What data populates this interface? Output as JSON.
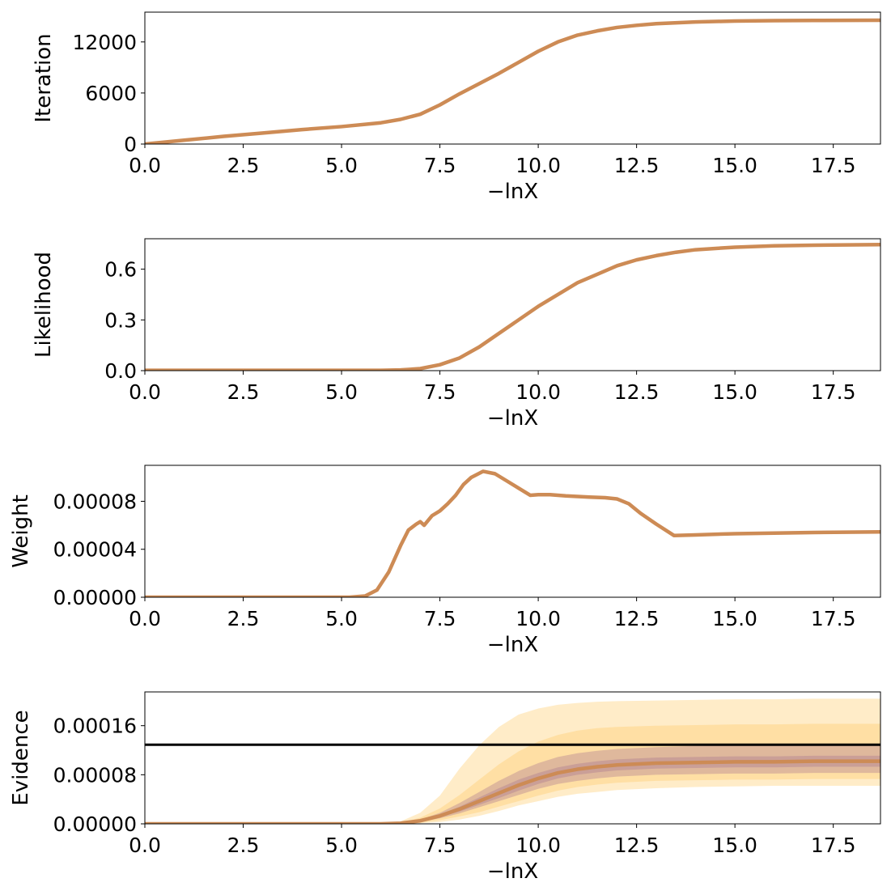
{
  "colors": {
    "line": "#cd8b55",
    "band_outer": "#ffc862",
    "band_inner": "#a27090",
    "reference": "#000000"
  },
  "chart_data": [
    {
      "type": "line",
      "xlabel": "−lnX",
      "ylabel": "Iteration",
      "xlim": [
        0,
        18.7
      ],
      "ylim": [
        0,
        15500
      ],
      "x_ticks": [
        "0.0",
        "2.5",
        "5.0",
        "7.5",
        "10.0",
        "12.5",
        "15.0",
        "17.5"
      ],
      "y_ticks": [
        "0",
        "6000",
        "12000"
      ],
      "series": [
        {
          "x": [
            0,
            1,
            2,
            3,
            4,
            5,
            6,
            6.5,
            7,
            7.5,
            8,
            8.5,
            9,
            9.5,
            10,
            10.5,
            11,
            11.5,
            12,
            12.5,
            13,
            14,
            15,
            16,
            17,
            18.7
          ],
          "values": [
            0,
            450,
            900,
            1300,
            1700,
            2050,
            2500,
            2900,
            3500,
            4600,
            5900,
            7100,
            8300,
            9600,
            10900,
            12000,
            12800,
            13300,
            13700,
            13950,
            14150,
            14350,
            14450,
            14500,
            14520,
            14550
          ]
        }
      ]
    },
    {
      "type": "line",
      "xlabel": "−lnX",
      "ylabel": "Likelihood",
      "xlim": [
        0,
        18.7
      ],
      "ylim": [
        0,
        0.78
      ],
      "x_ticks": [
        "0.0",
        "2.5",
        "5.0",
        "7.5",
        "10.0",
        "12.5",
        "15.0",
        "17.5"
      ],
      "y_ticks": [
        "0.0",
        "0.3",
        "0.6"
      ],
      "series": [
        {
          "x": [
            0,
            2,
            4,
            6,
            6.5,
            7,
            7.5,
            8,
            8.5,
            9,
            9.5,
            10,
            10.5,
            11,
            11.5,
            12,
            12.5,
            13,
            13.5,
            14,
            15,
            16,
            17,
            18.7
          ],
          "values": [
            0.002,
            0.002,
            0.002,
            0.002,
            0.004,
            0.012,
            0.035,
            0.075,
            0.14,
            0.22,
            0.3,
            0.38,
            0.45,
            0.52,
            0.57,
            0.62,
            0.655,
            0.68,
            0.7,
            0.715,
            0.73,
            0.738,
            0.742,
            0.745
          ]
        }
      ]
    },
    {
      "type": "line",
      "xlabel": "−lnX",
      "ylabel": "Weight",
      "xlim": [
        0,
        18.7
      ],
      "ylim": [
        0,
        0.00011
      ],
      "x_ticks": [
        "0.0",
        "2.5",
        "5.0",
        "7.5",
        "10.0",
        "12.5",
        "15.0",
        "17.5"
      ],
      "y_ticks": [
        "0.00000",
        "0.00004",
        "0.00008"
      ],
      "series": [
        {
          "x": [
            0,
            2,
            4,
            5.2,
            5.6,
            5.9,
            6.2,
            6.5,
            6.7,
            6.9,
            7.0,
            7.1,
            7.3,
            7.5,
            7.7,
            7.9,
            8.1,
            8.3,
            8.6,
            8.9,
            9.2,
            9.5,
            9.8,
            10.0,
            10.3,
            10.7,
            11.0,
            11.3,
            11.7,
            12.0,
            12.3,
            12.6,
            13.0,
            13.45,
            14.0,
            15.0,
            16.0,
            17.0,
            18.7
          ],
          "values": [
            0,
            0,
            0,
            0,
            1e-06,
            6e-06,
            2.1e-05,
            4.3e-05,
            5.6e-05,
            6.1e-05,
            6.3e-05,
            6e-05,
            6.8e-05,
            7.2e-05,
            7.8e-05,
            8.5e-05,
            9.4e-05,
            0.0001,
            0.000105,
            0.000103,
            9.7e-05,
            9.1e-05,
            8.5e-05,
            8.55e-05,
            8.55e-05,
            8.45e-05,
            8.4e-05,
            8.35e-05,
            8.3e-05,
            8.2e-05,
            7.8e-05,
            7e-05,
            6.1e-05,
            5.15e-05,
            5.2e-05,
            5.3e-05,
            5.35e-05,
            5.4e-05,
            5.45e-05
          ]
        }
      ]
    },
    {
      "type": "area",
      "xlabel": "−lnX",
      "ylabel": "Evidence",
      "xlim": [
        0,
        18.7
      ],
      "ylim": [
        0,
        0.000215
      ],
      "x_ticks": [
        "0.0",
        "2.5",
        "5.0",
        "7.5",
        "10.0",
        "12.5",
        "15.0",
        "17.5"
      ],
      "y_ticks": [
        "0.00000",
        "0.00008",
        "0.00016"
      ],
      "reference_line": 0.000129,
      "x": [
        0,
        2,
        4,
        6,
        6.5,
        7,
        7.5,
        8,
        8.5,
        9,
        9.5,
        10,
        10.5,
        11,
        11.5,
        12,
        13,
        14,
        15,
        16,
        17,
        18.7
      ],
      "series": [
        {
          "name": "mean",
          "values": [
            0,
            0,
            0,
            0,
            1e-06,
            5e-06,
            1.3e-05,
            2.4e-05,
            3.7e-05,
            5e-05,
            6.3e-05,
            7.4e-05,
            8.3e-05,
            8.9e-05,
            9.3e-05,
            9.6e-05,
            9.9e-05,
            0.0001,
            0.000101,
            0.000101,
            0.000102,
            0.000102
          ]
        }
      ],
      "bands": [
        {
          "upper": [
            0,
            0,
            0,
            0,
            4e-06,
            1.8e-05,
            4.6e-05,
            9e-05,
            0.000128,
            0.000158,
            0.000178,
            0.000188,
            0.000194,
            0.000197,
            0.000199,
            0.0002,
            0.000201,
            0.000202,
            0.000203,
            0.000203,
            0.000204,
            0.000204
          ],
          "lower": [
            0,
            0,
            0,
            0,
            0,
            1e-06,
            3e-06,
            7e-06,
            1.3e-05,
            2.1e-05,
            3e-05,
            3.7e-05,
            4.4e-05,
            4.9e-05,
            5.2e-05,
            5.5e-05,
            5.8e-05,
            6e-05,
            6.1e-05,
            6.2e-05,
            6.2e-05,
            6.2e-05
          ]
        },
        {
          "upper": [
            0,
            0,
            0,
            0,
            2e-06,
            1e-05,
            2.5e-05,
            4.7e-05,
            7.2e-05,
            9.7e-05,
            0.000118,
            0.000134,
            0.000145,
            0.000152,
            0.000156,
            0.000158,
            0.00016,
            0.000161,
            0.000162,
            0.000162,
            0.000163,
            0.000163
          ],
          "lower": [
            0,
            0,
            0,
            0,
            0,
            2e-06,
            6e-06,
            1.2e-05,
            1.9e-05,
            2.8e-05,
            3.7e-05,
            4.6e-05,
            5.4e-05,
            6e-05,
            6.4e-05,
            6.7e-05,
            7e-05,
            7.1e-05,
            7.2e-05,
            7.2e-05,
            7.3e-05,
            7.3e-05
          ]
        },
        {
          "upper": [
            0,
            0,
            0,
            0,
            1.5e-06,
            7e-06,
            1.8e-05,
            3.4e-05,
            5.2e-05,
            7e-05,
            8.6e-05,
            9.9e-05,
            0.000109,
            0.000115,
            0.000119,
            0.000122,
            0.000125,
            0.000127,
            0.000128,
            0.000128,
            0.000129,
            0.000129
          ],
          "lower": [
            0,
            0,
            0,
            0,
            0,
            3e-06,
            9e-06,
            1.7e-05,
            2.7e-05,
            3.7e-05,
            4.7e-05,
            5.7e-05,
            6.5e-05,
            7e-05,
            7.4e-05,
            7.7e-05,
            8e-05,
            8.1e-05,
            8.2e-05,
            8.2e-05,
            8.3e-05,
            8.3e-05
          ]
        },
        {
          "upper": [
            0,
            0,
            0,
            0,
            1.2e-06,
            6e-06,
            1.5e-05,
            2.8e-05,
            4.3e-05,
            5.8e-05,
            7.2e-05,
            8.3e-05,
            9.2e-05,
            9.8e-05,
            0.000102,
            0.000105,
            0.000108,
            0.000109,
            0.00011,
            0.00011,
            0.000111,
            0.000111
          ],
          "lower": [
            0,
            0,
            0,
            0,
            8e-07,
            4e-06,
            1.1e-05,
            2e-05,
            3.1e-05,
            4.2e-05,
            5.4e-05,
            6.5e-05,
            7.4e-05,
            8e-05,
            8.4e-05,
            8.7e-05,
            9e-05,
            9.1e-05,
            9.2e-05,
            9.2e-05,
            9.3e-05,
            9.3e-05
          ]
        }
      ]
    }
  ]
}
